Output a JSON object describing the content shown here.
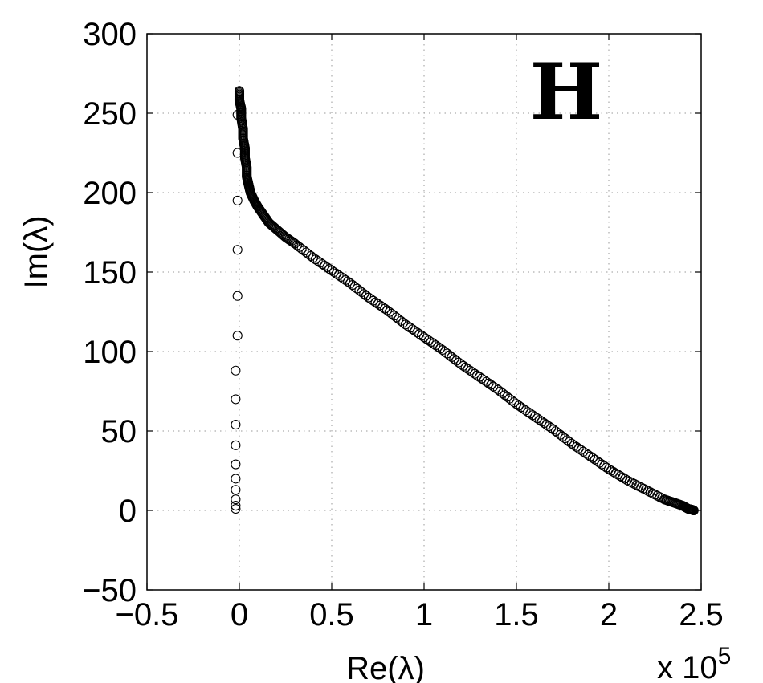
{
  "chart_data": {
    "type": "scatter",
    "title": "",
    "panel_label": "H",
    "xlabel": "Re(λ)",
    "ylabel": "Im(λ)",
    "x_multiplier_label": "x 10",
    "x_multiplier_exponent": "5",
    "xlim": [
      -0.5,
      2.5
    ],
    "ylim": [
      -50,
      300
    ],
    "x_scale_factor": 100000,
    "x_ticks": [
      -0.5,
      0,
      0.5,
      1,
      1.5,
      2,
      2.5
    ],
    "x_tick_labels": [
      "−0.5",
      "0",
      "0.5",
      "1",
      "1.5",
      "2",
      "2.5"
    ],
    "y_ticks": [
      -50,
      0,
      50,
      100,
      150,
      200,
      250,
      300
    ],
    "y_tick_labels": [
      "−50",
      "0",
      "50",
      "100",
      "150",
      "200",
      "250",
      "300"
    ],
    "grid": true,
    "marker": "open-circle",
    "series": [
      {
        "x": [
          -0.02,
          -0.02,
          -0.02,
          -0.02,
          -0.02,
          -0.02,
          -0.02,
          -0.02,
          -0.02,
          -0.02,
          -0.01,
          -0.01,
          -0.01,
          -0.01,
          -0.01,
          -0.01,
          0.0,
          0.0,
          0.0,
          0.01,
          0.01,
          0.02,
          0.02,
          0.03,
          0.03,
          0.04,
          0.04,
          0.05,
          0.06,
          0.08,
          0.1,
          0.13,
          0.16,
          0.2,
          0.25,
          0.3,
          0.4,
          0.5,
          0.6,
          0.7,
          0.8,
          0.9,
          1.0,
          1.1,
          1.2,
          1.3,
          1.4,
          1.5,
          1.6,
          1.7,
          1.8,
          1.9,
          2.0,
          2.1,
          2.2,
          2.3,
          2.35,
          2.4,
          2.43,
          2.45,
          2.46
        ],
        "y": [
          1,
          3,
          7,
          13,
          20,
          29,
          41,
          54,
          70,
          88,
          110,
          135,
          164,
          195,
          225,
          249,
          261,
          264,
          258,
          253,
          247,
          240,
          234,
          228,
          222,
          216,
          210,
          205,
          200,
          195,
          191,
          186,
          181,
          177,
          172,
          168,
          159,
          151,
          143,
          134,
          126,
          117,
          109,
          101,
          92,
          84,
          76,
          67,
          59,
          51,
          42,
          34,
          26,
          19,
          13,
          7,
          5,
          3,
          1,
          0.5,
          0
        ]
      }
    ]
  }
}
